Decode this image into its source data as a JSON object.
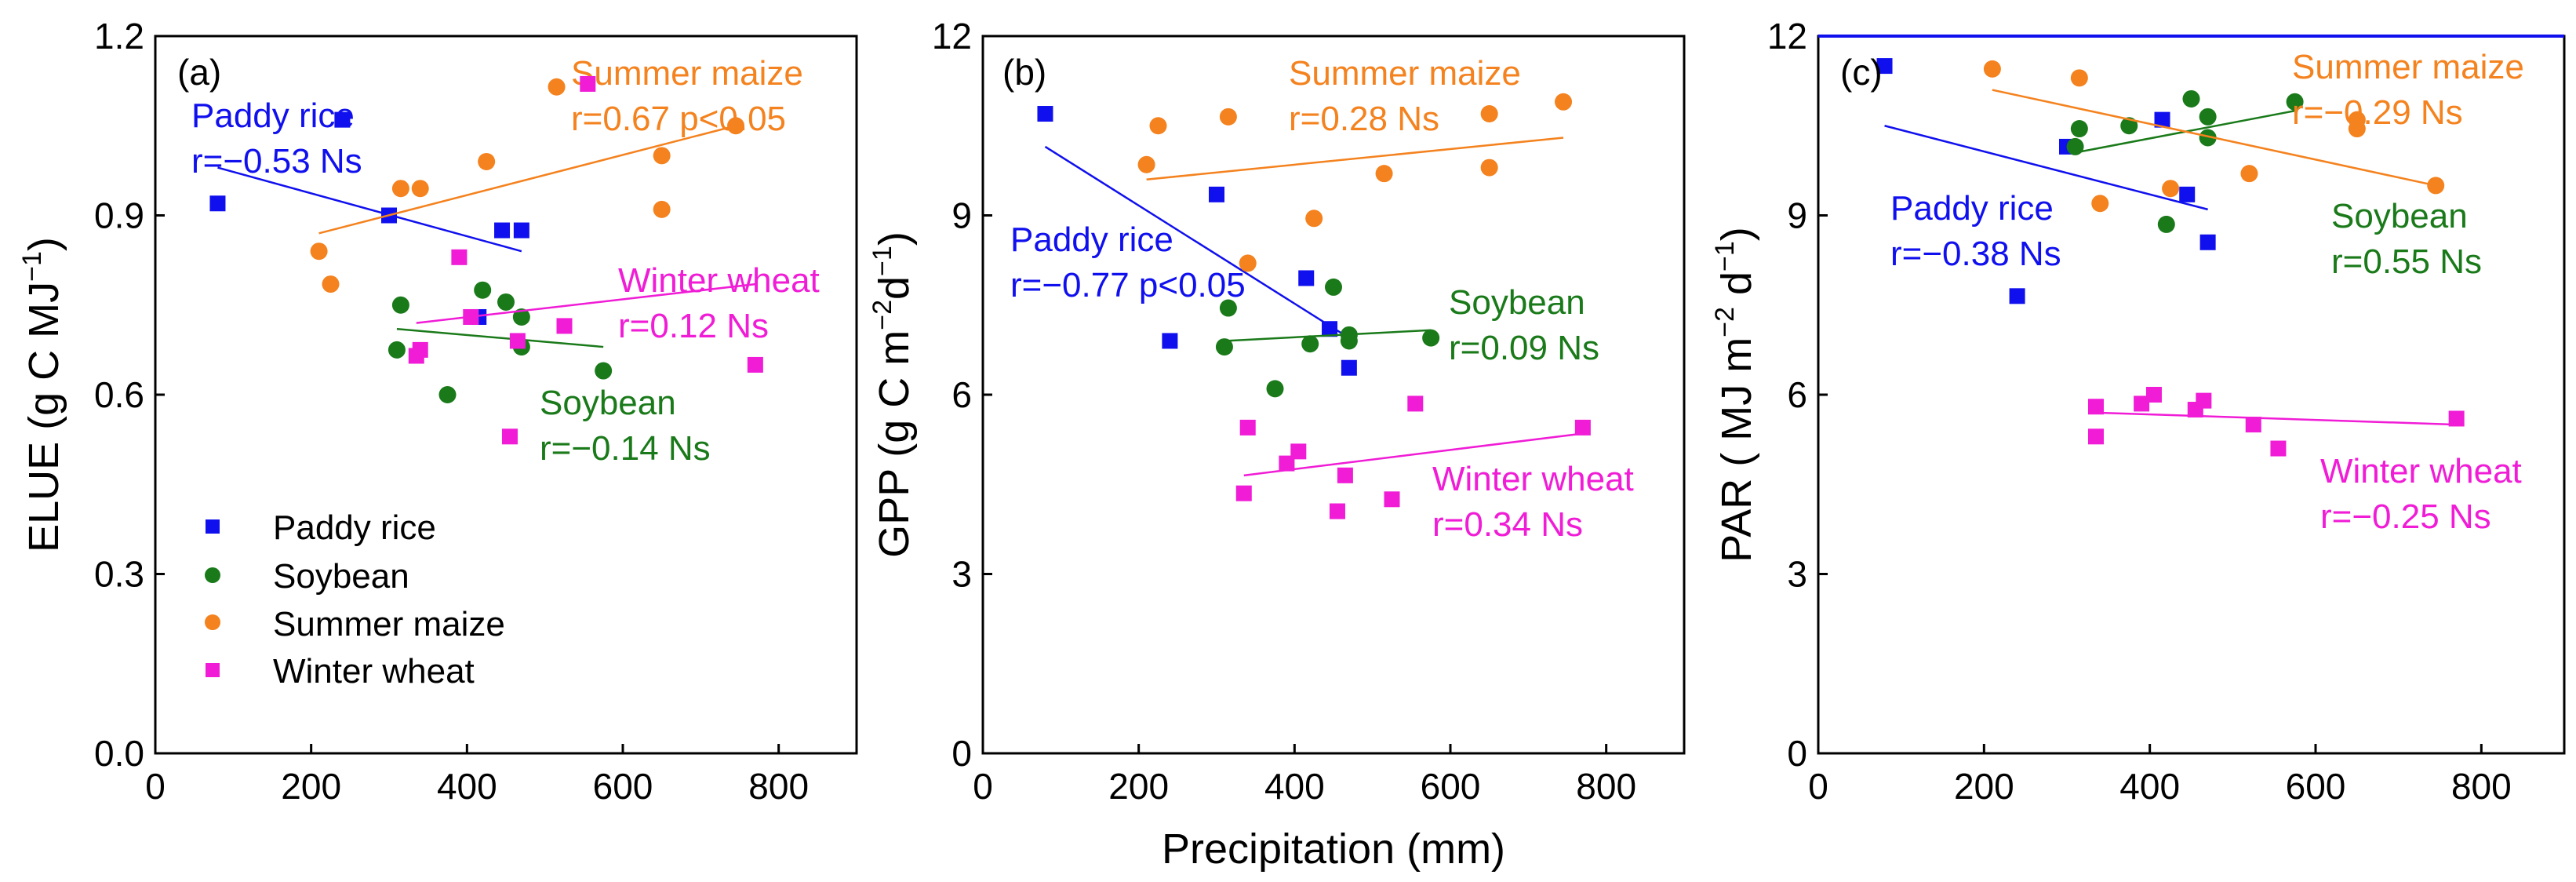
{
  "colors": {
    "rice": "#1010ee",
    "soy": "#1a7a1a",
    "maize": "#f4821e",
    "wheat": "#f01cd6"
  },
  "legend": [
    {
      "name": "Paddy rice",
      "key": "rice",
      "marker": "square"
    },
    {
      "name": "Soybean",
      "key": "soy",
      "marker": "circle"
    },
    {
      "name": "Summer maize",
      "key": "maize",
      "marker": "circle"
    },
    {
      "name": "Winter wheat",
      "key": "wheat",
      "marker": "square"
    }
  ],
  "shared_xlabel": "Precipitation (mm)",
  "chart_data": [
    {
      "type": "scatter",
      "panel": "(a)",
      "ylabel_main": "ELUE (g C MJ",
      "ylabel_sup": "−1",
      "ylabel_tail": ")",
      "xlim": [
        0,
        900
      ],
      "ylim": [
        0,
        1.2
      ],
      "xticks": [
        "0",
        "200",
        "400",
        "600",
        "800"
      ],
      "xtick_values": [
        0,
        200,
        400,
        600,
        800
      ],
      "yticks": [
        "0.0",
        "0.3",
        "0.6",
        "0.9",
        "1.2"
      ],
      "ytick_values": [
        0,
        0.3,
        0.6,
        0.9,
        1.2
      ],
      "series": [
        {
          "name": "Paddy rice",
          "key": "rice",
          "marker": "square",
          "x": [
            80,
            240,
            300,
            415,
            445,
            470
          ],
          "y": [
            0.92,
            1.06,
            0.9,
            0.73,
            0.875,
            0.875
          ],
          "fit": [
            [
              80,
              0.98
            ],
            [
              470,
              0.84
            ]
          ],
          "ann": [
            "Paddy rice",
            "r=−0.53  Ns"
          ]
        },
        {
          "name": "Soybean",
          "key": "soy",
          "marker": "circle",
          "x": [
            310,
            315,
            375,
            420,
            450,
            470,
            470,
            575
          ],
          "y": [
            0.675,
            0.75,
            0.6,
            0.775,
            0.755,
            0.73,
            0.68,
            0.64
          ],
          "fit": [
            [
              310,
              0.71
            ],
            [
              575,
              0.68
            ]
          ],
          "ann": [
            "Soybean",
            "r=−0.14  Ns"
          ]
        },
        {
          "name": "Summer maize",
          "key": "maize",
          "marker": "circle",
          "x": [
            210,
            225,
            315,
            340,
            425,
            515,
            650,
            650,
            745
          ],
          "y": [
            0.84,
            0.785,
            0.945,
            0.945,
            0.99,
            1.115,
            1.0,
            0.91,
            1.05
          ],
          "fit": [
            [
              210,
              0.87
            ],
            [
              745,
              1.05
            ]
          ],
          "ann": [
            "Summer maize",
            "r=0.67  p<0.05"
          ]
        },
        {
          "name": "Winter wheat",
          "key": "wheat",
          "marker": "square",
          "x": [
            335,
            340,
            390,
            405,
            455,
            465,
            525,
            555,
            770
          ],
          "y": [
            0.665,
            0.675,
            0.83,
            0.73,
            0.53,
            0.69,
            0.715,
            1.12,
            0.65
          ],
          "fit": [
            [
              335,
              0.72
            ],
            [
              770,
              0.785
            ]
          ],
          "ann": [
            "Winter wheat",
            "r=0.12  Ns"
          ]
        }
      ]
    },
    {
      "type": "scatter",
      "panel": "(b)",
      "ylabel_main": "GPP (g C m",
      "ylabel_sup": "−2",
      "ylabel_mid": "d",
      "ylabel_sup2": "−1",
      "ylabel_tail": ")",
      "xlim": [
        0,
        900
      ],
      "ylim": [
        0,
        12
      ],
      "xticks": [
        "0",
        "200",
        "400",
        "600",
        "800"
      ],
      "xtick_values": [
        0,
        200,
        400,
        600,
        800
      ],
      "yticks": [
        "0",
        "3",
        "6",
        "9",
        "12"
      ],
      "ytick_values": [
        0,
        3,
        6,
        9,
        12
      ],
      "series": [
        {
          "name": "Paddy rice",
          "key": "rice",
          "marker": "square",
          "x": [
            80,
            240,
            300,
            415,
            445,
            470
          ],
          "y": [
            10.7,
            6.9,
            9.35,
            7.95,
            7.1,
            6.45
          ],
          "fit": [
            [
              80,
              10.15
            ],
            [
              470,
              6.95
            ]
          ],
          "ann": [
            "Paddy rice",
            "r=−0.77  p<0.05"
          ]
        },
        {
          "name": "Soybean",
          "key": "soy",
          "marker": "circle",
          "x": [
            310,
            315,
            375,
            420,
            450,
            470,
            470,
            575
          ],
          "y": [
            6.8,
            7.45,
            6.1,
            6.85,
            7.8,
            7.0,
            6.9,
            6.95
          ],
          "fit": [
            [
              310,
              6.9
            ],
            [
              575,
              7.08
            ]
          ],
          "ann": [
            "Soybean",
            "r=0.09  Ns"
          ]
        },
        {
          "name": "Summer maize",
          "key": "maize",
          "marker": "circle",
          "x": [
            210,
            225,
            315,
            340,
            425,
            515,
            650,
            650,
            745
          ],
          "y": [
            9.85,
            10.5,
            10.65,
            8.2,
            8.95,
            9.7,
            9.8,
            10.7,
            10.9
          ],
          "fit": [
            [
              210,
              9.6
            ],
            [
              745,
              10.3
            ]
          ],
          "ann": [
            "Summer maize",
            "r=0.28  Ns"
          ]
        },
        {
          "name": "Winter wheat",
          "key": "wheat",
          "marker": "square",
          "x": [
            335,
            340,
            390,
            405,
            455,
            465,
            525,
            555,
            770
          ],
          "y": [
            4.35,
            5.45,
            4.85,
            5.05,
            4.05,
            4.65,
            4.25,
            5.85,
            5.45
          ],
          "fit": [
            [
              335,
              4.65
            ],
            [
              770,
              5.35
            ]
          ],
          "ann": [
            "Winter wheat",
            "r=0.34 Ns"
          ]
        }
      ]
    },
    {
      "type": "scatter",
      "panel": "(c)",
      "ylabel_main": "PAR ( MJ m",
      "ylabel_sup": "−2",
      "ylabel_mid": " d",
      "ylabel_sup2": "−1",
      "ylabel_tail": ")",
      "xlim": [
        0,
        900
      ],
      "ylim": [
        0,
        12
      ],
      "xticks": [
        "0",
        "200",
        "400",
        "600",
        "800"
      ],
      "xtick_values": [
        0,
        200,
        400,
        600,
        800
      ],
      "yticks": [
        "0",
        "3",
        "6",
        "9",
        "12"
      ],
      "ytick_values": [
        0,
        3,
        6,
        9,
        12
      ],
      "series": [
        {
          "name": "Paddy rice",
          "key": "rice",
          "marker": "square",
          "x": [
            80,
            240,
            300,
            415,
            445,
            470
          ],
          "y": [
            11.5,
            7.65,
            10.15,
            10.6,
            9.35,
            8.55
          ],
          "fit": [
            [
              80,
              10.5
            ],
            [
              470,
              9.1
            ]
          ],
          "ann": [
            "Paddy rice",
            "r=−0.38  Ns"
          ]
        },
        {
          "name": "Soybean",
          "key": "soy",
          "marker": "circle",
          "x": [
            310,
            315,
            375,
            420,
            450,
            470,
            470,
            575
          ],
          "y": [
            10.15,
            10.45,
            10.5,
            8.85,
            10.95,
            10.65,
            10.3,
            10.9
          ],
          "fit": [
            [
              310,
              10.05
            ],
            [
              575,
              10.75
            ]
          ],
          "ann": [
            "Soybean",
            "r=0.55  Ns"
          ]
        },
        {
          "name": "Summer maize",
          "key": "maize",
          "marker": "circle",
          "x": [
            210,
            315,
            340,
            425,
            520,
            650,
            650,
            745
          ],
          "y": [
            11.45,
            11.3,
            9.2,
            9.45,
            9.7,
            10.6,
            10.45,
            9.5
          ],
          "fit": [
            [
              210,
              11.1
            ],
            [
              745,
              9.5
            ]
          ],
          "ann": [
            "Summer maize",
            "r=−0.29  Ns"
          ]
        },
        {
          "name": "Winter wheat",
          "key": "wheat",
          "marker": "square",
          "x": [
            335,
            335,
            390,
            405,
            455,
            465,
            525,
            555,
            770
          ],
          "y": [
            5.8,
            5.3,
            5.85,
            6.0,
            5.75,
            5.9,
            5.5,
            5.1,
            5.6
          ],
          "fit": [
            [
              335,
              5.7
            ],
            [
              770,
              5.5
            ]
          ],
          "ann": [
            "Winter wheat",
            "r=−0.25  Ns"
          ]
        }
      ]
    }
  ]
}
